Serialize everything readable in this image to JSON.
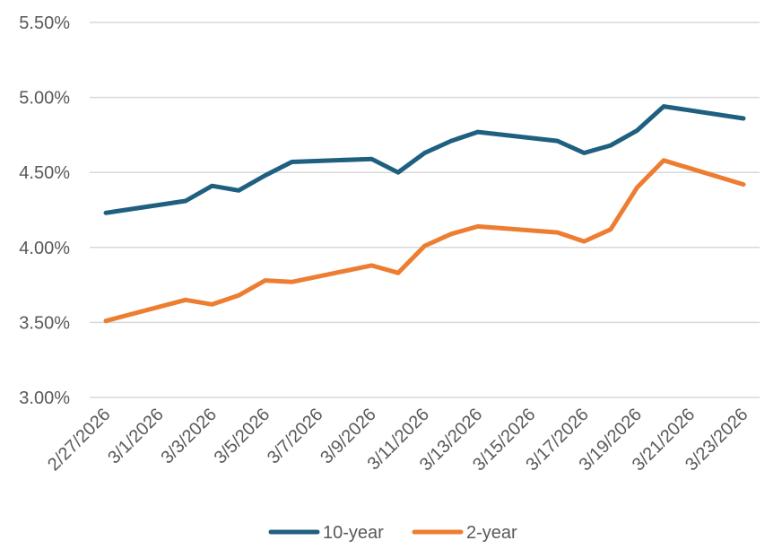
{
  "chart_data": {
    "type": "line",
    "title": "",
    "xlabel": "",
    "ylabel": "",
    "ylim": [
      3.0,
      5.5
    ],
    "y_ticks": [
      3.0,
      3.5,
      4.0,
      4.5,
      5.0,
      5.5
    ],
    "y_tick_labels": [
      "3.00%",
      "3.50%",
      "4.00%",
      "4.50%",
      "5.00%",
      "5.50%"
    ],
    "x_range": [
      "2/27/2026",
      "3/23/2026"
    ],
    "x_tick_labels": [
      "2/27/2026",
      "3/1/2026",
      "3/3/2026",
      "3/5/2026",
      "3/7/2026",
      "3/9/2026",
      "3/11/2026",
      "3/13/2026",
      "3/15/2026",
      "3/17/2026",
      "3/19/2026",
      "3/21/2026",
      "3/23/2026"
    ],
    "grid": true,
    "legend_position": "bottom",
    "series": [
      {
        "name": "10-year",
        "color": "#1f5f7f",
        "points": [
          {
            "date": "2/27/2026",
            "value": 4.23
          },
          {
            "date": "3/2/2026",
            "value": 4.31
          },
          {
            "date": "3/3/2026",
            "value": 4.41
          },
          {
            "date": "3/4/2026",
            "value": 4.38
          },
          {
            "date": "3/5/2026",
            "value": 4.48
          },
          {
            "date": "3/6/2026",
            "value": 4.57
          },
          {
            "date": "3/9/2026",
            "value": 4.59
          },
          {
            "date": "3/10/2026",
            "value": 4.5
          },
          {
            "date": "3/11/2026",
            "value": 4.63
          },
          {
            "date": "3/12/2026",
            "value": 4.71
          },
          {
            "date": "3/13/2026",
            "value": 4.77
          },
          {
            "date": "3/16/2026",
            "value": 4.71
          },
          {
            "date": "3/17/2026",
            "value": 4.63
          },
          {
            "date": "3/18/2026",
            "value": 4.68
          },
          {
            "date": "3/19/2026",
            "value": 4.78
          },
          {
            "date": "3/20/2026",
            "value": 4.94
          },
          {
            "date": "3/23/2026",
            "value": 4.86
          }
        ]
      },
      {
        "name": "2-year",
        "color": "#ed7d31",
        "points": [
          {
            "date": "2/27/2026",
            "value": 3.51
          },
          {
            "date": "3/2/2026",
            "value": 3.65
          },
          {
            "date": "3/3/2026",
            "value": 3.62
          },
          {
            "date": "3/4/2026",
            "value": 3.68
          },
          {
            "date": "3/5/2026",
            "value": 3.78
          },
          {
            "date": "3/6/2026",
            "value": 3.77
          },
          {
            "date": "3/9/2026",
            "value": 3.88
          },
          {
            "date": "3/10/2026",
            "value": 3.83
          },
          {
            "date": "3/11/2026",
            "value": 4.01
          },
          {
            "date": "3/12/2026",
            "value": 4.09
          },
          {
            "date": "3/13/2026",
            "value": 4.14
          },
          {
            "date": "3/16/2026",
            "value": 4.1
          },
          {
            "date": "3/17/2026",
            "value": 4.04
          },
          {
            "date": "3/18/2026",
            "value": 4.12
          },
          {
            "date": "3/19/2026",
            "value": 4.4
          },
          {
            "date": "3/20/2026",
            "value": 4.58
          },
          {
            "date": "3/23/2026",
            "value": 4.42
          }
        ]
      }
    ]
  }
}
